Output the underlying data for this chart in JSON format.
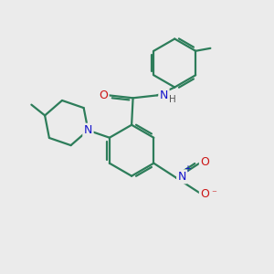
{
  "bg_color": "#ebebeb",
  "bond_color": "#2d7d5a",
  "atom_colors": {
    "N": "#1414cc",
    "O": "#cc1414",
    "C": "#2d7d5a",
    "H": "#555555"
  },
  "line_width": 1.6,
  "figsize": [
    3.0,
    3.0
  ],
  "dpi": 100
}
